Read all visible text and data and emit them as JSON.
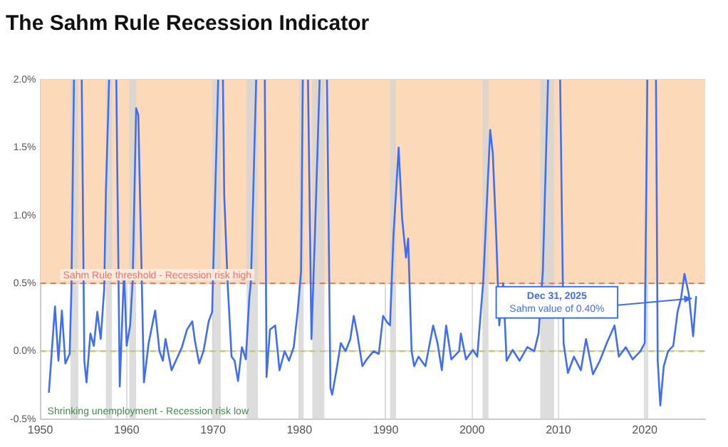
{
  "chart_data": {
    "type": "line",
    "title": "The Sahm Rule Recession Indicator",
    "x": [
      1951.0,
      1951.7,
      1952.1,
      1952.5,
      1952.9,
      1953.4,
      1953.6,
      1953.9,
      1954.3,
      1954.8,
      1955.1,
      1955.35,
      1955.8,
      1956.2,
      1956.6,
      1957.0,
      1957.4,
      1957.6,
      1957.97,
      1958.4,
      1958.8,
      1959.2,
      1959.7,
      1960.0,
      1960.4,
      1960.7,
      1961.1,
      1961.35,
      1962.0,
      1962.55,
      1963.3,
      1963.8,
      1964.2,
      1964.5,
      1965.2,
      1965.7,
      1966.4,
      1967.0,
      1967.6,
      1967.9,
      1968.4,
      1968.9,
      1969.5,
      1969.9,
      1970.6,
      1970.9,
      1971.15,
      1971.3,
      1971.7,
      1972.15,
      1972.5,
      1972.9,
      1973.35,
      1973.8,
      1974.2,
      1974.4,
      1975.0,
      1975.5,
      1976.0,
      1976.2,
      1976.6,
      1977.2,
      1977.7,
      1978.3,
      1978.8,
      1979.35,
      1979.8,
      1980.2,
      1980.4,
      1980.7,
      1981.0,
      1981.4,
      1981.8,
      1982.35,
      1982.8,
      1983.2,
      1983.6,
      1983.8,
      1984.3,
      1984.8,
      1985.35,
      1985.9,
      1986.3,
      1986.7,
      1987.3,
      1987.8,
      1988.6,
      1989.2,
      1989.7,
      1990.2,
      1990.5,
      1990.9,
      1991.5,
      1991.9,
      1992.35,
      1992.6,
      1993.0,
      1993.3,
      1993.8,
      1994.6,
      1995.5,
      1996.0,
      1996.5,
      1997.0,
      1997.6,
      1998.5,
      1998.7,
      1999.3,
      2000.1,
      2000.6,
      2001.3,
      2002.1,
      2002.4,
      2002.8,
      2003.15,
      2003.6,
      2004.0,
      2004.7,
      2005.5,
      2006.4,
      2007.2,
      2007.7,
      2008.2,
      2008.8,
      2009.5,
      2010.2,
      2010.6,
      2011.1,
      2011.8,
      2012.6,
      2013.2,
      2014.0,
      2014.8,
      2015.6,
      2016.5,
      2017.0,
      2017.8,
      2018.6,
      2019.5,
      2020.0,
      2020.3,
      2020.8,
      2021.3,
      2021.5,
      2021.8,
      2022.2,
      2022.7,
      2023.3,
      2023.8,
      2024.2,
      2024.6,
      2025.1,
      2025.6,
      2025.95
    ],
    "series": [
      {
        "color": "#3f6ef0",
        "values": [
          -0.3,
          0.33,
          -0.07,
          0.3,
          -0.09,
          -0.02,
          0.45,
          2.0,
          null,
          2.0,
          -0.07,
          -0.23,
          0.13,
          0.04,
          0.29,
          0.09,
          0.46,
          1.18,
          2.0,
          null,
          2.0,
          -0.26,
          0.6,
          0.04,
          0.19,
          0.52,
          1.79,
          1.74,
          -0.23,
          0.06,
          0.3,
          0.0,
          -0.07,
          0.09,
          -0.14,
          -0.07,
          0.03,
          0.16,
          0.22,
          0.08,
          -0.09,
          0.0,
          0.22,
          0.29,
          2.0,
          null,
          2.0,
          1.15,
          0.49,
          -0.04,
          -0.07,
          -0.22,
          0.03,
          -0.06,
          0.39,
          0.52,
          2.0,
          null,
          2.0,
          -0.19,
          0.16,
          0.19,
          -0.14,
          0.0,
          -0.07,
          0.03,
          0.29,
          0.59,
          2.0,
          null,
          2.0,
          0.09,
          0.85,
          2.0,
          null,
          2.0,
          -0.27,
          -0.32,
          -0.14,
          0.06,
          0.0,
          0.09,
          0.26,
          0.13,
          -0.11,
          -0.06,
          0.0,
          -0.02,
          0.26,
          0.21,
          0.19,
          0.85,
          1.5,
          0.98,
          0.69,
          0.83,
          0.0,
          -0.11,
          -0.04,
          -0.11,
          0.19,
          0.06,
          -0.14,
          0.19,
          -0.06,
          0.0,
          0.13,
          -0.06,
          0.01,
          -0.04,
          0.52,
          1.63,
          1.46,
          0.85,
          0.19,
          0.5,
          -0.07,
          0.01,
          -0.07,
          0.03,
          0.0,
          0.13,
          0.59,
          2.0,
          null,
          2.0,
          0.06,
          -0.16,
          -0.04,
          -0.14,
          0.09,
          -0.17,
          -0.07,
          0.06,
          0.19,
          -0.04,
          0.03,
          -0.06,
          0.0,
          0.06,
          2.0,
          null,
          2.0,
          -0.07,
          -0.4,
          -0.11,
          0.0,
          0.04,
          0.29,
          0.39,
          0.57,
          0.42,
          0.11,
          0.4
        ]
      }
    ],
    "xlim": [
      1950,
      2027
    ],
    "xticks": [
      1950,
      1960,
      1970,
      1980,
      1990,
      2000,
      2010,
      2020
    ],
    "ylim": [
      -0.5,
      2.0
    ],
    "yticks": [
      {
        "value": -0.5,
        "label": "-0.5%"
      },
      {
        "value": 0,
        "label": "0.0%"
      },
      {
        "value": 0.5,
        "label": "0.5%"
      },
      {
        "value": 1.0,
        "label": "1.0%"
      },
      {
        "value": 1.5,
        "label": "1.5%"
      },
      {
        "value": 2.0,
        "label": "2.0%"
      }
    ],
    "grid": true,
    "legend": false,
    "marker": "none",
    "line_style": "solid",
    "bands": [
      {
        "axis": "y",
        "from": 0.5,
        "to": 2.0,
        "color": "#fcd9b8"
      },
      {
        "axis": "x",
        "from": 1953.5,
        "to": 1954.4,
        "color": "#d4d4d4"
      },
      {
        "axis": "x",
        "from": 1957.6,
        "to": 1958.3,
        "color": "#d4d4d4"
      },
      {
        "axis": "x",
        "from": 1960.3,
        "to": 1961.1,
        "color": "#d4d4d4"
      },
      {
        "axis": "x",
        "from": 1969.9,
        "to": 1970.9,
        "color": "#d4d4d4"
      },
      {
        "axis": "x",
        "from": 1973.9,
        "to": 1975.2,
        "color": "#d4d4d4"
      },
      {
        "axis": "x",
        "from": 1980.0,
        "to": 1980.5,
        "color": "#d4d4d4"
      },
      {
        "axis": "x",
        "from": 1981.5,
        "to": 1982.9,
        "color": "#d4d4d4"
      },
      {
        "axis": "x",
        "from": 1990.5,
        "to": 1991.2,
        "color": "#d4d4d4"
      },
      {
        "axis": "x",
        "from": 2001.2,
        "to": 2001.9,
        "color": "#d4d4d4"
      },
      {
        "axis": "x",
        "from": 2007.9,
        "to": 2009.5,
        "color": "#d4d4d4"
      },
      {
        "axis": "x",
        "from": 2020.1,
        "to": 2020.4,
        "color": "#d4d4d4"
      }
    ],
    "ref_lines": [
      {
        "axis": "y",
        "value": 0.5,
        "label": "Sahm Rule threshold - Recession risk high",
        "color": "#f4706a",
        "line_style": "dashed"
      },
      {
        "axis": "y",
        "value": 0,
        "color": "#b5cc6a",
        "line_style": "dashed"
      }
    ],
    "annotations": [
      "Dec 31, 2025\nSahm value of 0.40%",
      "Shrinking unemployment - Recession risk low"
    ]
  }
}
